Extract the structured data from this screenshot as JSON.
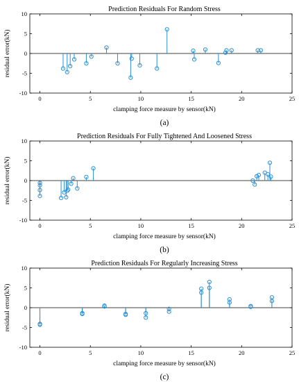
{
  "chart_data": [
    {
      "type": "stem",
      "title": "Prediction Residuals For Random Stress",
      "xlabel": "clamping force measure by sensor(kN)",
      "ylabel": "residual error(kN)",
      "xlim": [
        -1,
        25
      ],
      "ylim": [
        -10,
        10
      ],
      "xticks": [
        "0",
        "5",
        "10",
        "15",
        "20",
        "25"
      ],
      "yticks": [
        "-10",
        "-5",
        "0",
        "5",
        "10"
      ],
      "grid": false,
      "panel_label": "(a)",
      "color": "#2a8fd6",
      "x": [
        2.3,
        2.7,
        3.0,
        3.4,
        4.6,
        5.1,
        6.6,
        7.7,
        9.0,
        9.1,
        9.9,
        11.6,
        12.6,
        15.2,
        15.3,
        16.4,
        17.7,
        18.4,
        18.5,
        19.0,
        21.6,
        21.9
      ],
      "y": [
        -3.8,
        -4.7,
        -3.2,
        -1.5,
        -2.5,
        -0.8,
        1.5,
        -2.5,
        -6.1,
        -1.3,
        -3.0,
        -3.8,
        6.1,
        0.7,
        -1.5,
        1.0,
        -2.4,
        0.2,
        0.8,
        0.8,
        0.8,
        0.8
      ]
    },
    {
      "type": "stem",
      "title": "Prediction Residuals For Fully Tightened And Loosened Stress",
      "xlabel": "clamping force measure by sensor(kN)",
      "ylabel": "residual error(kN)",
      "xlim": [
        -1,
        25
      ],
      "ylim": [
        -10,
        10
      ],
      "xticks": [
        "0",
        "5",
        "10",
        "15",
        "20",
        "25"
      ],
      "yticks": [
        "-10",
        "-5",
        "0",
        "5",
        "10"
      ],
      "grid": false,
      "panel_label": "(b)",
      "color": "#2a8fd6",
      "x": [
        0.0,
        0.0,
        0.0,
        0.0,
        2.1,
        2.4,
        2.6,
        2.7,
        2.8,
        3.1,
        3.3,
        3.7,
        4.6,
        5.3,
        21.1,
        21.3,
        21.5,
        21.7,
        22.3,
        22.6,
        22.8,
        22.9
      ],
      "y": [
        -0.6,
        -1.2,
        -2.4,
        -3.9,
        -4.4,
        -3.0,
        -4.2,
        -2.6,
        -2.3,
        -0.8,
        0.6,
        -2.0,
        0.9,
        3.1,
        0.0,
        -1.0,
        1.1,
        1.4,
        2.0,
        1.6,
        4.5,
        1.0
      ]
    },
    {
      "type": "stem",
      "title": "Prediction Residuals For Regularly Increasing Stress",
      "xlabel": "clamping force measure by sensor(kN)",
      "ylabel": "residual error(kN)",
      "xlim": [
        -1,
        25
      ],
      "ylim": [
        -10,
        10
      ],
      "xticks": [
        "0",
        "5",
        "10",
        "15",
        "20",
        "25"
      ],
      "yticks": [
        "-10",
        "-5",
        "0",
        "5",
        "10"
      ],
      "grid": false,
      "panel_label": "(c)",
      "color": "#2a8fd6",
      "x": [
        0.0,
        0.0,
        4.2,
        4.2,
        6.4,
        6.4,
        8.5,
        8.5,
        10.5,
        10.5,
        12.8,
        12.8,
        16.0,
        16.0,
        16.8,
        16.8,
        18.8,
        18.8,
        20.9,
        20.9,
        23.0,
        23.0
      ],
      "y": [
        -4.1,
        -4.3,
        -1.4,
        -1.6,
        0.5,
        0.3,
        -1.6,
        -1.8,
        -1.4,
        -2.5,
        -0.3,
        -1.0,
        4.8,
        3.8,
        6.5,
        5.0,
        2.1,
        1.3,
        0.4,
        0.2,
        2.6,
        1.7
      ]
    }
  ]
}
